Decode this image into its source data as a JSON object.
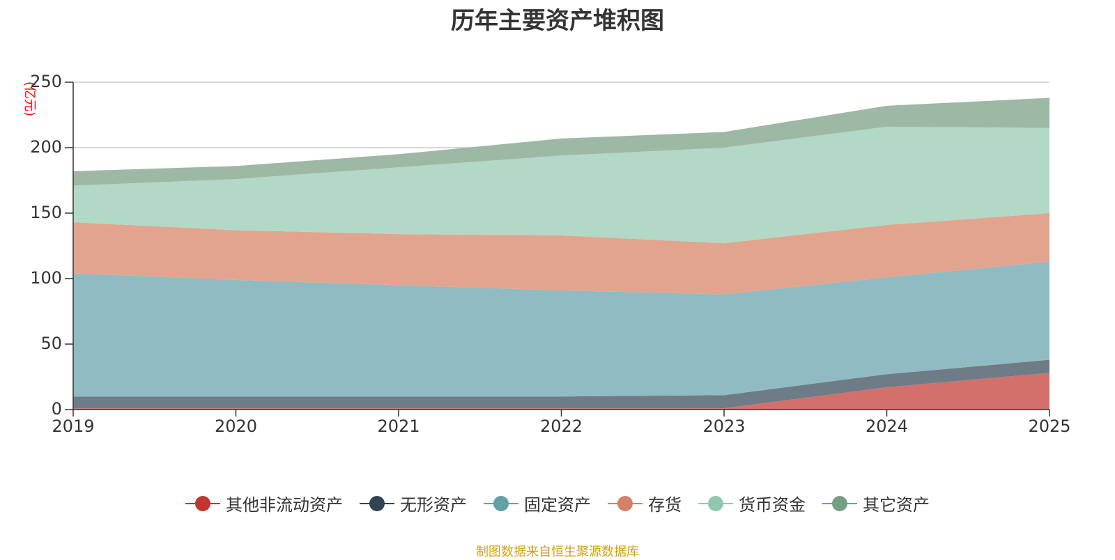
{
  "chart_data": {
    "type": "area",
    "stacked": true,
    "title": "历年主要资产堆积图",
    "unit_label": "(亿元)",
    "x": [
      "2019",
      "2020",
      "2021",
      "2022",
      "2023",
      "2024",
      "2025"
    ],
    "ylim": [
      0,
      250
    ],
    "yticks": [
      "0",
      "50",
      "100",
      "150",
      "200",
      "250"
    ],
    "grid": true,
    "legend_position": "bottom",
    "series": [
      {
        "name": "其他非流动资产",
        "color": "#c23531",
        "fill": "#d4706c",
        "values": [
          1,
          1,
          1,
          1,
          1,
          17,
          28
        ]
      },
      {
        "name": "无形资产",
        "color": "#2f4554",
        "fill": "#6e7c87",
        "values": [
          9,
          9,
          9,
          9,
          10,
          10,
          10
        ]
      },
      {
        "name": "固定资产",
        "color": "#61a0a8",
        "fill": "#90bbc2",
        "values": [
          94,
          89,
          85,
          81,
          77,
          74,
          75
        ]
      },
      {
        "name": "存货",
        "color": "#d48265",
        "fill": "#e2a48e",
        "values": [
          39,
          38,
          39,
          42,
          39,
          40,
          37
        ]
      },
      {
        "name": "货币资金",
        "color": "#91c7ae",
        "fill": "#b1d9c6",
        "values": [
          28,
          39,
          51,
          61,
          73,
          75,
          65
        ]
      },
      {
        "name": "其它资产",
        "color": "#749f83",
        "fill": "#9db8a4",
        "values": [
          11,
          10,
          10,
          13,
          12,
          16,
          23
        ]
      }
    ]
  },
  "footer": {
    "source": "制图数据来自恒生聚源数据库"
  }
}
